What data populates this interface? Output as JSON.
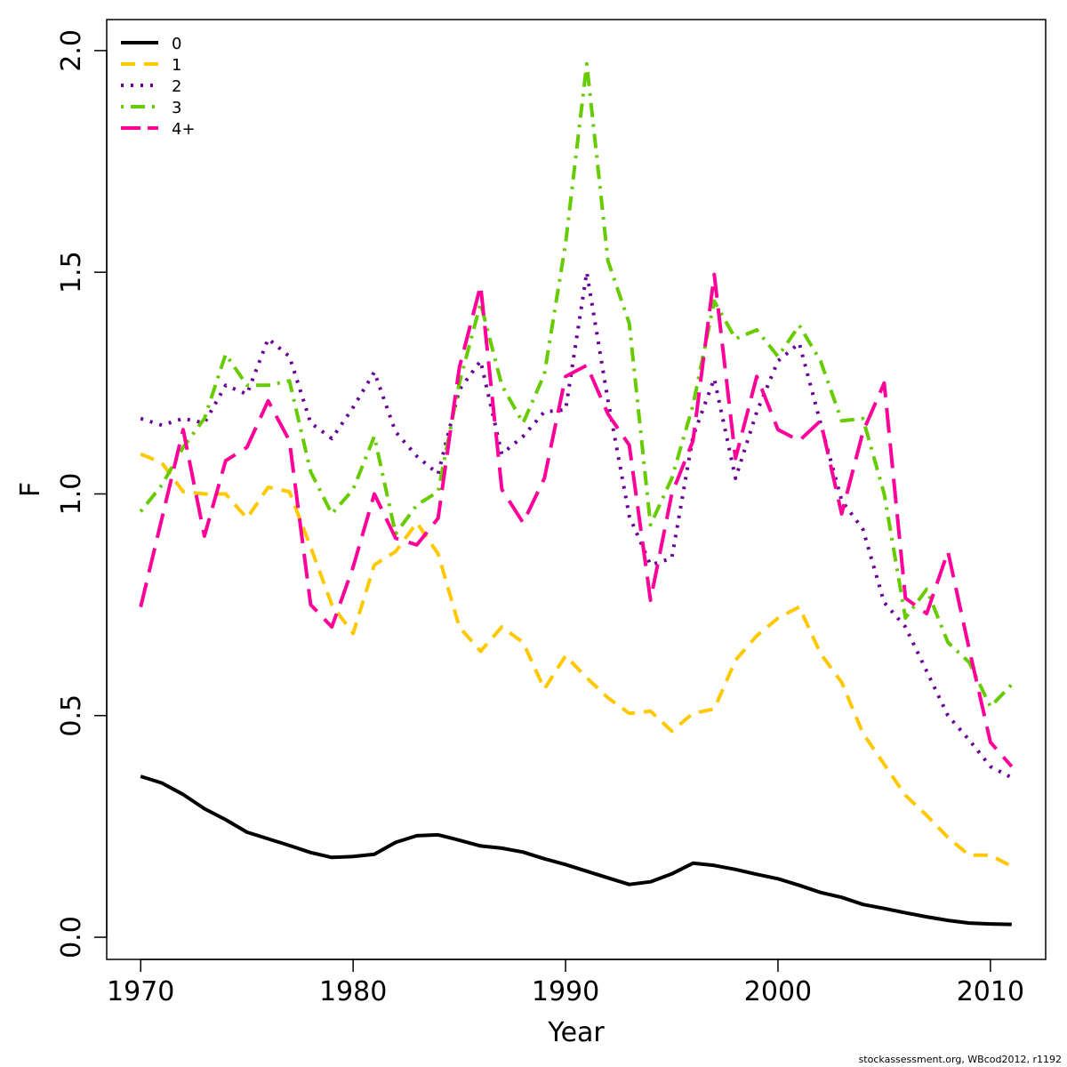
{
  "chart_data": {
    "type": "line",
    "xlabel": "Year",
    "ylabel": "F",
    "xlim": [
      1968.4,
      2012.6
    ],
    "ylim": [
      -0.05,
      2.07
    ],
    "x_ticks": [
      1970,
      1980,
      1990,
      2000,
      2010
    ],
    "y_ticks": [
      0.0,
      0.5,
      1.0,
      1.5,
      2.0
    ],
    "y_tick_labels": [
      "0.0",
      "0.5",
      "1.0",
      "1.5",
      "2.0"
    ],
    "legend_position": "top-left",
    "grid": false,
    "x": [
      1970,
      1971,
      1972,
      1973,
      1974,
      1975,
      1976,
      1977,
      1978,
      1979,
      1980,
      1981,
      1982,
      1983,
      1984,
      1985,
      1986,
      1987,
      1988,
      1989,
      1990,
      1991,
      1992,
      1993,
      1994,
      1995,
      1996,
      1997,
      1998,
      1999,
      2000,
      2001,
      2002,
      2003,
      2004,
      2005,
      2006,
      2007,
      2008,
      2009,
      2010,
      2011
    ],
    "series": [
      {
        "name": "0",
        "color": "#000000",
        "dash": "solid",
        "values": [
          0.363,
          0.348,
          0.322,
          0.29,
          0.265,
          0.237,
          0.222,
          0.207,
          0.191,
          0.18,
          0.182,
          0.187,
          0.214,
          0.229,
          0.231,
          0.219,
          0.206,
          0.201,
          0.192,
          0.177,
          0.164,
          0.149,
          0.134,
          0.119,
          0.125,
          0.143,
          0.167,
          0.162,
          0.153,
          0.142,
          0.132,
          0.117,
          0.101,
          0.09,
          0.074,
          0.065,
          0.055,
          0.046,
          0.038,
          0.032,
          0.03,
          0.029
        ]
      },
      {
        "name": "1",
        "color": "#ffc800",
        "dash": "dashed",
        "values": [
          1.09,
          1.07,
          1.005,
          1.0,
          1.0,
          0.945,
          1.015,
          1.005,
          0.88,
          0.75,
          0.685,
          0.84,
          0.87,
          0.935,
          0.865,
          0.7,
          0.645,
          0.7,
          0.665,
          0.56,
          0.635,
          0.585,
          0.54,
          0.505,
          0.51,
          0.465,
          0.505,
          0.515,
          0.625,
          0.68,
          0.72,
          0.745,
          0.64,
          0.575,
          0.46,
          0.39,
          0.32,
          0.275,
          0.225,
          0.185,
          0.185,
          0.16
        ]
      },
      {
        "name": "2",
        "color": "#6b0099",
        "dash": "dotted",
        "values": [
          1.17,
          1.155,
          1.17,
          1.16,
          1.245,
          1.225,
          1.35,
          1.31,
          1.16,
          1.125,
          1.195,
          1.275,
          1.14,
          1.085,
          1.045,
          1.235,
          1.3,
          1.09,
          1.13,
          1.185,
          1.19,
          1.5,
          1.21,
          0.95,
          0.84,
          0.855,
          1.13,
          1.26,
          1.035,
          1.185,
          1.3,
          1.34,
          1.16,
          0.985,
          0.92,
          0.755,
          0.7,
          0.6,
          0.5,
          0.445,
          0.385,
          0.36
        ]
      },
      {
        "name": "3",
        "color": "#66cc00",
        "dash": "dashdot",
        "values": [
          0.96,
          1.02,
          1.105,
          1.17,
          1.315,
          1.245,
          1.245,
          1.255,
          1.05,
          0.955,
          1.01,
          1.13,
          0.91,
          0.975,
          1.005,
          1.25,
          1.43,
          1.245,
          1.16,
          1.27,
          1.565,
          1.97,
          1.525,
          1.385,
          0.93,
          1.035,
          1.2,
          1.435,
          1.35,
          1.37,
          1.31,
          1.38,
          1.3,
          1.165,
          1.17,
          1.0,
          0.72,
          0.785,
          0.665,
          0.62,
          0.52,
          0.57
        ]
      },
      {
        "name": "4+",
        "color": "#ff0099",
        "dash": "longdash",
        "values": [
          0.745,
          0.945,
          1.145,
          0.905,
          1.075,
          1.105,
          1.21,
          1.12,
          0.75,
          0.7,
          0.835,
          1.0,
          0.9,
          0.885,
          0.945,
          1.285,
          1.47,
          1.01,
          0.935,
          1.035,
          1.265,
          1.29,
          1.18,
          1.11,
          0.76,
          1.0,
          1.12,
          1.495,
          1.08,
          1.265,
          1.145,
          1.12,
          1.165,
          0.955,
          1.14,
          1.25,
          0.765,
          0.73,
          0.87,
          0.65,
          0.44,
          0.385
        ]
      }
    ]
  },
  "footer": "stockassessment.org, WBcod2012, r1192"
}
